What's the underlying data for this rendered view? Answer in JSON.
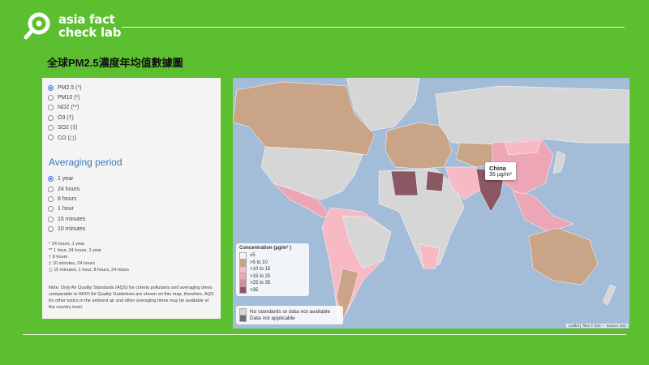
{
  "brand": {
    "line1": "asia fact",
    "line2": "check lab"
  },
  "title": "全球PM2.5濃度年均值數據圖",
  "pollutants": [
    {
      "label": "PM2.5 (*)",
      "selected": true
    },
    {
      "label": "PM10 (*)",
      "selected": false
    },
    {
      "label": "NO2 (**)",
      "selected": false
    },
    {
      "label": "O3 (†)",
      "selected": false
    },
    {
      "label": "SO2 (‡)",
      "selected": false
    },
    {
      "label": "CO (◻)",
      "selected": false
    }
  ],
  "averaging": {
    "heading": "Averaging period",
    "options": [
      {
        "label": "1 year",
        "selected": true
      },
      {
        "label": "24 hours",
        "selected": false
      },
      {
        "label": "8 hours",
        "selected": false
      },
      {
        "label": "1 hour",
        "selected": false
      },
      {
        "label": "15 minutes",
        "selected": false
      },
      {
        "label": "10 minutes",
        "selected": false
      }
    ]
  },
  "footnotes": [
    "* 24 hours, 1 year",
    "** 1 hour, 24 hours, 1 year",
    "† 8 hours",
    "‡ 10 minutes, 24 hours",
    "◻ 15 minutes, 1 hour, 8 hours, 24 hours"
  ],
  "note": "Note: Only Air Quality Standards (AQS) for criteria pollutants and averaging times comparable to WHO Air Quality Guidelines are shown on this map, therefore, AQS for other toxics in the ambient air and other averaging times may be available at the country level.",
  "tooltip": {
    "country": "China",
    "value": "35 µg/m³"
  },
  "legend": {
    "title": "Concentration (µg/m³ )",
    "items": [
      {
        "label": "≤5",
        "color": "#fbf3ee"
      },
      {
        "label": ">5 to 10",
        "color": "#c9a487"
      },
      {
        "label": ">10 to 15",
        "color": "#f7b9c3"
      },
      {
        "label": ">15 to 25",
        "color": "#eda6b6"
      },
      {
        "label": ">25 to 35",
        "color": "#d88a9c"
      },
      {
        "label": ">35",
        "color": "#8a5763"
      }
    ],
    "extra": [
      {
        "label": "No standards or data not available",
        "color": "#d6d6d6"
      },
      {
        "label": "Data not applicable",
        "color": "#6f6f6f"
      }
    ]
  },
  "attribution": "Leaflet | Tiles © Esri — Source: Esri",
  "colors": {
    "background": "#5cbf2f",
    "ocean": "#a3bcd8"
  }
}
